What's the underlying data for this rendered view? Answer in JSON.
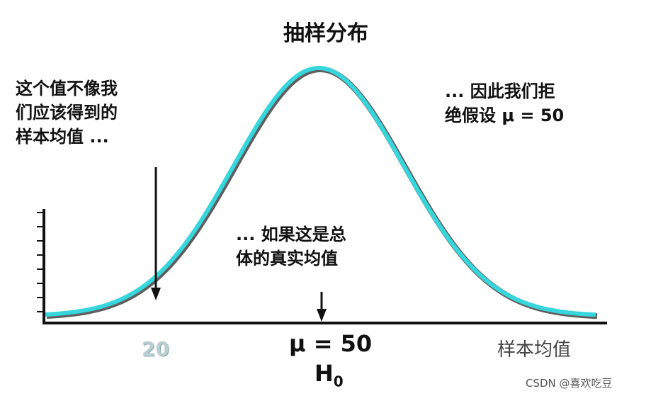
{
  "title": "抽样分布",
  "left_note": [
    "这个值不像我",
    "们应该得到的",
    "样本均值 ..."
  ],
  "right_note": [
    "... 因此我们拒",
    "绝假设 μ = 50"
  ],
  "middle_note": [
    "... 如果这是总",
    "体的真实均值"
  ],
  "x_tick_left": "20",
  "mu_label": "μ = 50",
  "h0": {
    "main": "H",
    "sub": "0"
  },
  "x_axis_label": "样本均值",
  "watermark": "CSDN @喜欢吃豆",
  "colors": {
    "curve": "#36d6dc",
    "curve_shadow": "#5e5e5e",
    "axis": "#111111"
  }
}
